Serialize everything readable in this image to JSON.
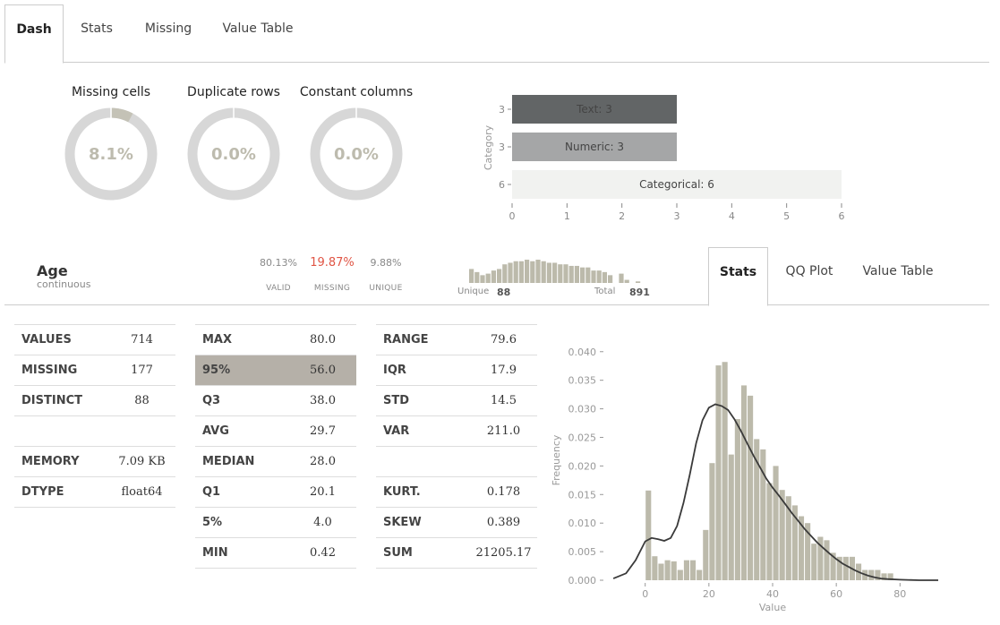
{
  "tabs": [
    "Dash",
    "Stats",
    "Missing",
    "Value Table"
  ],
  "donuts": [
    {
      "title": "Missing cells",
      "value": "8.1%",
      "fraction": 0.081
    },
    {
      "title": "Duplicate rows",
      "value": "0.0%",
      "fraction": 0.0
    },
    {
      "title": "Constant columns",
      "value": "0.0%",
      "fraction": 0.0
    }
  ],
  "category_chart": {
    "type": "bar",
    "orientation": "horizontal",
    "ylabel": "Category",
    "xlim": [
      0,
      6
    ],
    "xticks": [
      "0",
      "1",
      "2",
      "3",
      "4",
      "5",
      "6"
    ],
    "bars": [
      {
        "tick": "3",
        "label": "Text: 3",
        "value": 3,
        "color": "#626566"
      },
      {
        "tick": "3",
        "label": "Numeric: 3",
        "value": 3,
        "color": "#a5a6a7"
      },
      {
        "tick": "6",
        "label": "Categorical: 6",
        "value": 6,
        "color": "#f1f2f0"
      }
    ]
  },
  "variable": {
    "name": "Age",
    "type": "continuous",
    "valid_pct": "80.13%",
    "missing_pct": "19.87%",
    "unique_pct": "9.88%",
    "valid_label": "VALID",
    "missing_label": "MISSING",
    "unique_label": "UNIQUE",
    "unique_text": "Unique",
    "unique_count": "88",
    "total_text": "Total",
    "total_count": "891",
    "missing_color": "#e05545"
  },
  "mini_hist": [
    9,
    7,
    5,
    6,
    8,
    9,
    12,
    13,
    14,
    14,
    15,
    14,
    15,
    14,
    13,
    13,
    12,
    12,
    11,
    11,
    10,
    10,
    8,
    8,
    7,
    5,
    0,
    6,
    2,
    0,
    1
  ],
  "sub_tabs": [
    "Stats",
    "QQ Plot",
    "Value Table"
  ],
  "stats_col1": [
    {
      "k": "VALUES",
      "v": "714"
    },
    {
      "k": "MISSING",
      "v": "177"
    },
    {
      "k": "DISTINCT",
      "v": "88"
    },
    {
      "k": "",
      "v": ""
    },
    {
      "k": "MEMORY",
      "v": "7.09 KB"
    },
    {
      "k": "DTYPE",
      "v": "float64"
    }
  ],
  "stats_col2": [
    {
      "k": "MAX",
      "v": "80.0"
    },
    {
      "k": "95%",
      "v": "56.0"
    },
    {
      "k": "Q3",
      "v": "38.0"
    },
    {
      "k": "AVG",
      "v": "29.7"
    },
    {
      "k": "MEDIAN",
      "v": "28.0"
    },
    {
      "k": "Q1",
      "v": "20.1"
    },
    {
      "k": "5%",
      "v": "4.0"
    },
    {
      "k": "MIN",
      "v": "0.42"
    }
  ],
  "stats_col3": [
    {
      "k": "RANGE",
      "v": "79.6"
    },
    {
      "k": "IQR",
      "v": "17.9"
    },
    {
      "k": "STD",
      "v": "14.5"
    },
    {
      "k": "VAR",
      "v": "211.0"
    },
    {
      "k": "",
      "v": ""
    },
    {
      "k": "KURT.",
      "v": "0.178"
    },
    {
      "k": "SKEW",
      "v": "0.389"
    },
    {
      "k": "SUM",
      "v": "21205.17"
    }
  ],
  "chart_data": {
    "type": "bar",
    "xlabel": "Value",
    "ylabel": "Frequency",
    "xlim": [
      -12,
      92
    ],
    "ylim": [
      0,
      0.042
    ],
    "xticks": [
      0,
      20,
      40,
      60,
      80
    ],
    "xtick_labels": [
      "0",
      "20",
      "40",
      "60",
      "80"
    ],
    "yticks": [
      0,
      0.005,
      0.01,
      0.015,
      0.02,
      0.025,
      0.03,
      0.035,
      0.04
    ],
    "ytick_labels": [
      "0.000",
      "0.005",
      "0.010",
      "0.015",
      "0.020",
      "0.025",
      "0.030",
      "0.035",
      "0.040"
    ],
    "bin_width": 2,
    "bins_start": 0,
    "hist": [
      0.0157,
      0.0042,
      0.0029,
      0.0035,
      0.0033,
      0.0018,
      0.0035,
      0.0035,
      0.0018,
      0.0088,
      0.0205,
      0.0376,
      0.0382,
      0.022,
      0.0282,
      0.0341,
      0.0323,
      0.0247,
      0.0229,
      0.017,
      0.02,
      0.0158,
      0.0147,
      0.0131,
      0.0112,
      0.01,
      0.0064,
      0.0076,
      0.007,
      0.0048,
      0.0041,
      0.0041,
      0.0041,
      0.0029,
      0.0018,
      0.0018,
      0.0018,
      0.0012,
      0.0012,
      0.0
    ],
    "kde_x": [
      -10,
      -6,
      -3,
      0,
      2,
      4,
      6,
      8,
      10,
      12,
      14,
      16,
      18,
      20,
      22,
      24,
      26,
      28,
      30,
      32,
      34,
      36,
      38,
      40,
      42,
      44,
      46,
      48,
      50,
      52,
      54,
      56,
      58,
      60,
      62,
      64,
      66,
      68,
      70,
      72,
      74,
      76,
      80,
      86,
      92
    ],
    "kde_y": [
      0.0003,
      0.0012,
      0.0035,
      0.0068,
      0.0074,
      0.0072,
      0.0069,
      0.0074,
      0.0095,
      0.0135,
      0.0185,
      0.024,
      0.028,
      0.0302,
      0.0308,
      0.0305,
      0.0298,
      0.0282,
      0.0262,
      0.024,
      0.0218,
      0.0198,
      0.0178,
      0.0162,
      0.0148,
      0.0133,
      0.0118,
      0.0104,
      0.009,
      0.0078,
      0.0066,
      0.0056,
      0.0046,
      0.0037,
      0.0029,
      0.0023,
      0.0017,
      0.0012,
      0.0008,
      0.0005,
      0.0003,
      0.0002,
      0.0001,
      0.0,
      0.0
    ],
    "bar_color": "#bcbaab",
    "line_color": "#3a3a3a"
  }
}
